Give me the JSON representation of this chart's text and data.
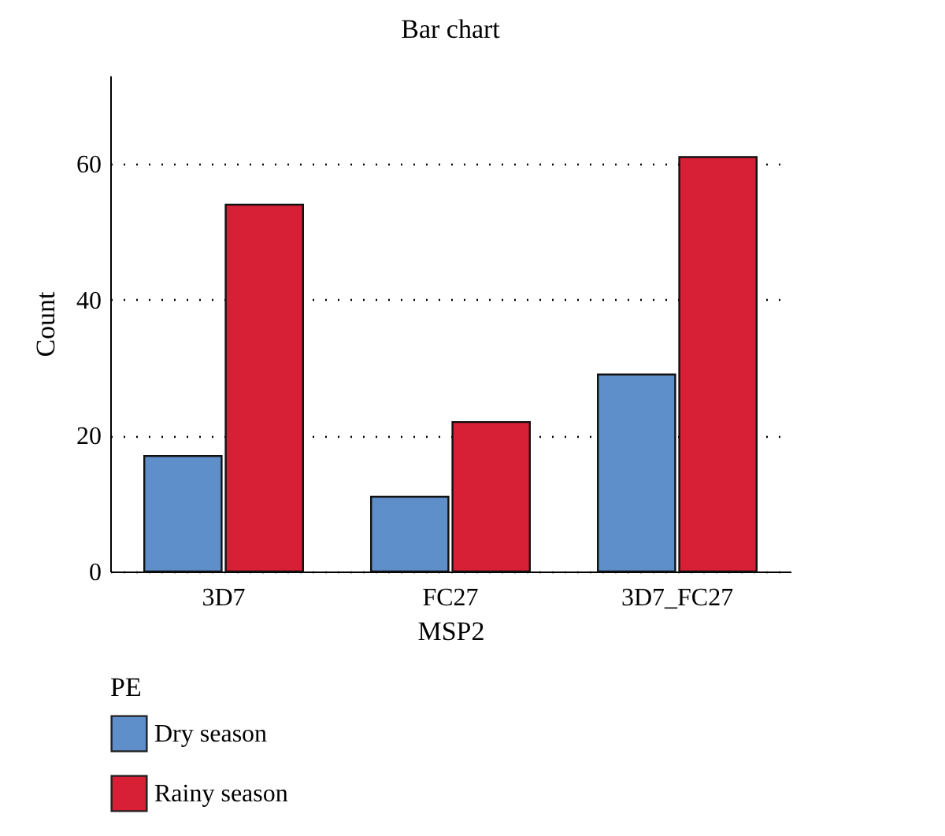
{
  "chart_data": {
    "type": "bar",
    "title": "Bar chart",
    "xlabel": "MSP2",
    "ylabel": "Count",
    "legend_title": "PE",
    "categories": [
      "3D7",
      "FC27",
      "3D7_FC27"
    ],
    "series": [
      {
        "name": "Dry season",
        "color": "#5f8fca",
        "values": [
          17,
          11,
          29
        ]
      },
      {
        "name": "Rainy season",
        "color": "#d71f35",
        "values": [
          54,
          22,
          61
        ]
      }
    ],
    "ylim": [
      0,
      73
    ],
    "yticks": [
      0,
      20,
      40,
      60
    ],
    "grid": "y",
    "legend": "bottom left"
  }
}
